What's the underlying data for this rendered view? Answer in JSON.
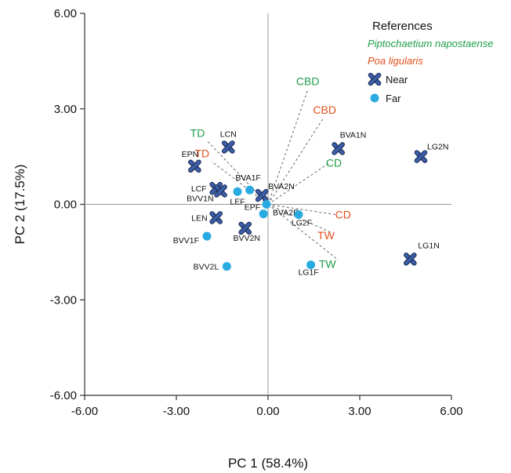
{
  "chart_data": {
    "type": "scatter",
    "xlabel": "PC 1 (58.4%)",
    "ylabel": "PC 2 (17.5%)",
    "xlim": [
      -6,
      6
    ],
    "ylim": [
      -6,
      6
    ],
    "x_ticks": [
      "-6.00",
      "-3.00",
      "0.00",
      "3.00",
      "6.00"
    ],
    "y_ticks": [
      "6.00",
      "3.00",
      "0.00",
      "-3.00",
      "-6.00"
    ],
    "x_tick_values": [
      -6,
      -3,
      0,
      3,
      6
    ],
    "y_tick_values": [
      6,
      3,
      0,
      -3,
      -6
    ],
    "grid": false,
    "legend_position": "top-right",
    "legend": {
      "title": "References",
      "species": [
        {
          "label": "Piptochaetium napostaense",
          "color": "#1f9e4a"
        },
        {
          "label": "Poa ligularis",
          "color": "#e2501d"
        }
      ],
      "markers": [
        {
          "label": "Near",
          "marker": "x-icon",
          "color": "#3c5ea6"
        },
        {
          "label": "Far",
          "marker": "dot-icon",
          "color": "#29abe2"
        }
      ]
    },
    "series": [
      {
        "name": "Near",
        "marker": "x-icon",
        "color": "#3c5ea6",
        "points": [
          {
            "label": "LCN",
            "x": -1.3,
            "y": 1.8
          },
          {
            "label": "EPN",
            "x": -2.4,
            "y": 1.2
          },
          {
            "label": "LCF",
            "x": -1.7,
            "y": 0.5
          },
          {
            "label": "BVV1N",
            "x": -1.55,
            "y": 0.42
          },
          {
            "label": "BVA2N",
            "x": -0.2,
            "y": 0.28
          },
          {
            "label": "LEN",
            "x": -1.7,
            "y": -0.42
          },
          {
            "label": "BVV2N",
            "x": -0.75,
            "y": -0.75
          },
          {
            "label": "BVA1N",
            "x": 2.3,
            "y": 1.75
          },
          {
            "label": "LG2N",
            "x": 5.0,
            "y": 1.5
          },
          {
            "label": "LG1N",
            "x": 4.65,
            "y": -1.72
          }
        ]
      },
      {
        "name": "Far",
        "marker": "dot-icon",
        "color": "#29abe2",
        "points": [
          {
            "label": "LEF",
            "x": -1.0,
            "y": 0.4
          },
          {
            "label": "BVA1F",
            "x": -0.6,
            "y": 0.45
          },
          {
            "label": "BVA2F",
            "x": -0.05,
            "y": 0.0
          },
          {
            "label": "EPF",
            "x": -0.15,
            "y": -0.3
          },
          {
            "label": "LG2F",
            "x": 1.0,
            "y": -0.32
          },
          {
            "label": "BVV1F",
            "x": -2.0,
            "y": -1.0
          },
          {
            "label": "BVV2L",
            "x": -1.35,
            "y": -1.95
          },
          {
            "label": "LG1F",
            "x": 1.4,
            "y": -1.9
          }
        ]
      }
    ],
    "vectors": [
      {
        "label": "CBD",
        "species": "Piptochaetium napostaense",
        "color": "#1f9e4a",
        "x": 1.3,
        "y": 3.6
      },
      {
        "label": "CD",
        "species": "Piptochaetium napostaense",
        "color": "#1f9e4a",
        "x": 2.0,
        "y": 1.3
      },
      {
        "label": "TD",
        "species": "Piptochaetium napostaense",
        "color": "#1f9e4a",
        "x": -2.0,
        "y": 2.0
      },
      {
        "label": "TW",
        "species": "Piptochaetium napostaense",
        "color": "#1f9e4a",
        "x": 2.3,
        "y": -1.75
      },
      {
        "label": "CBD",
        "species": "Poa ligularis",
        "color": "#e2501d",
        "x": 1.8,
        "y": 2.7
      },
      {
        "label": "CD",
        "species": "Poa ligularis",
        "color": "#e2501d",
        "x": 2.2,
        "y": -0.32
      },
      {
        "label": "TD",
        "species": "Poa ligularis",
        "color": "#e2501d",
        "x": -1.85,
        "y": 1.35
      },
      {
        "label": "TW",
        "species": "Poa ligularis",
        "color": "#e2501d",
        "x": 2.1,
        "y": -0.9
      }
    ]
  }
}
